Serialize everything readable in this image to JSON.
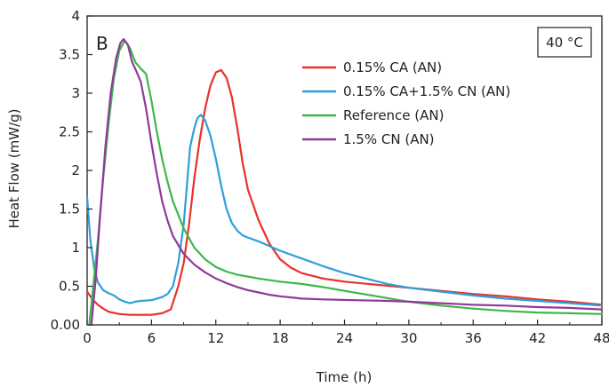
{
  "chart_data": {
    "type": "line",
    "panel_label": "B",
    "annotation": "40 °C",
    "xlabel": "Time (h)",
    "ylabel": "Heat Flow (mW/g)",
    "xlim": [
      0,
      48
    ],
    "ylim": [
      0,
      4
    ],
    "xticks": [
      0,
      6,
      12,
      18,
      24,
      30,
      36,
      42,
      48
    ],
    "yticks": [
      0,
      0.5,
      1,
      1.5,
      2,
      2.5,
      3,
      3.5,
      4
    ],
    "ytick_labels": [
      "0.00",
      "0.5",
      "1",
      "1.5",
      "2",
      "2.5",
      "3",
      "3.5",
      "4"
    ],
    "grid": false,
    "legend_position": "top-right",
    "series": [
      {
        "name": "0.15% CA (AN)",
        "color": "#e8312a",
        "points": [
          [
            0,
            0.43
          ],
          [
            0.5,
            0.33
          ],
          [
            1,
            0.26
          ],
          [
            1.5,
            0.21
          ],
          [
            2,
            0.17
          ],
          [
            3,
            0.14
          ],
          [
            4,
            0.13
          ],
          [
            5,
            0.13
          ],
          [
            6,
            0.13
          ],
          [
            7,
            0.15
          ],
          [
            7.8,
            0.2
          ],
          [
            8.5,
            0.5
          ],
          [
            9,
            0.8
          ],
          [
            9.5,
            1.3
          ],
          [
            10,
            1.9
          ],
          [
            10.5,
            2.4
          ],
          [
            11,
            2.8
          ],
          [
            11.5,
            3.1
          ],
          [
            12,
            3.27
          ],
          [
            12.5,
            3.3
          ],
          [
            13,
            3.2
          ],
          [
            13.5,
            2.95
          ],
          [
            14,
            2.55
          ],
          [
            14.5,
            2.1
          ],
          [
            15,
            1.75
          ],
          [
            16,
            1.35
          ],
          [
            17,
            1.05
          ],
          [
            18,
            0.85
          ],
          [
            19,
            0.74
          ],
          [
            20,
            0.67
          ],
          [
            22,
            0.6
          ],
          [
            24,
            0.56
          ],
          [
            27,
            0.52
          ],
          [
            30,
            0.48
          ],
          [
            33,
            0.44
          ],
          [
            36,
            0.4
          ],
          [
            39,
            0.37
          ],
          [
            42,
            0.33
          ],
          [
            45,
            0.3
          ],
          [
            48,
            0.26
          ]
        ]
      },
      {
        "name": "0.15% CA+1.5% CN (AN)",
        "color": "#2e9fd8",
        "points": [
          [
            0,
            1.65
          ],
          [
            0.3,
            1.1
          ],
          [
            0.7,
            0.7
          ],
          [
            1,
            0.55
          ],
          [
            1.5,
            0.45
          ],
          [
            2,
            0.41
          ],
          [
            2.5,
            0.38
          ],
          [
            3,
            0.33
          ],
          [
            3.5,
            0.3
          ],
          [
            4,
            0.28
          ],
          [
            4.5,
            0.3
          ],
          [
            5,
            0.31
          ],
          [
            6,
            0.32
          ],
          [
            7,
            0.36
          ],
          [
            7.5,
            0.4
          ],
          [
            8,
            0.5
          ],
          [
            8.5,
            0.8
          ],
          [
            9,
            1.3
          ],
          [
            9.3,
            1.8
          ],
          [
            9.6,
            2.3
          ],
          [
            10,
            2.55
          ],
          [
            10.3,
            2.68
          ],
          [
            10.6,
            2.72
          ],
          [
            11,
            2.65
          ],
          [
            11.5,
            2.45
          ],
          [
            12,
            2.15
          ],
          [
            12.5,
            1.8
          ],
          [
            13,
            1.5
          ],
          [
            13.5,
            1.32
          ],
          [
            14,
            1.22
          ],
          [
            14.5,
            1.16
          ],
          [
            15,
            1.13
          ],
          [
            16,
            1.08
          ],
          [
            17,
            1.02
          ],
          [
            18,
            0.96
          ],
          [
            20,
            0.86
          ],
          [
            22,
            0.76
          ],
          [
            24,
            0.67
          ],
          [
            26,
            0.6
          ],
          [
            28,
            0.53
          ],
          [
            30,
            0.48
          ],
          [
            33,
            0.43
          ],
          [
            36,
            0.38
          ],
          [
            39,
            0.34
          ],
          [
            42,
            0.31
          ],
          [
            45,
            0.28
          ],
          [
            48,
            0.25
          ]
        ]
      },
      {
        "name": "Reference (AN)",
        "color": "#3cb84a",
        "points": [
          [
            0.2,
            0
          ],
          [
            0.5,
            0.4
          ],
          [
            1,
            1.1
          ],
          [
            1.5,
            1.9
          ],
          [
            2,
            2.6
          ],
          [
            2.5,
            3.2
          ],
          [
            3,
            3.55
          ],
          [
            3.5,
            3.68
          ],
          [
            4,
            3.58
          ],
          [
            4.5,
            3.4
          ],
          [
            5,
            3.32
          ],
          [
            5.5,
            3.25
          ],
          [
            6,
            2.9
          ],
          [
            6.5,
            2.5
          ],
          [
            7,
            2.15
          ],
          [
            7.5,
            1.85
          ],
          [
            8,
            1.6
          ],
          [
            9,
            1.25
          ],
          [
            10,
            1.0
          ],
          [
            11,
            0.85
          ],
          [
            12,
            0.75
          ],
          [
            13,
            0.69
          ],
          [
            14,
            0.65
          ],
          [
            16,
            0.6
          ],
          [
            18,
            0.56
          ],
          [
            20,
            0.53
          ],
          [
            22,
            0.49
          ],
          [
            24,
            0.44
          ],
          [
            27,
            0.37
          ],
          [
            30,
            0.3
          ],
          [
            33,
            0.25
          ],
          [
            36,
            0.21
          ],
          [
            39,
            0.18
          ],
          [
            42,
            0.16
          ],
          [
            45,
            0.15
          ],
          [
            48,
            0.14
          ]
        ]
      },
      {
        "name": "1.5% CN (AN)",
        "color": "#8e3a9a",
        "points": [
          [
            0.4,
            0
          ],
          [
            0.8,
            0.6
          ],
          [
            1.2,
            1.4
          ],
          [
            1.7,
            2.3
          ],
          [
            2.2,
            3.0
          ],
          [
            2.7,
            3.45
          ],
          [
            3.1,
            3.65
          ],
          [
            3.4,
            3.7
          ],
          [
            3.8,
            3.63
          ],
          [
            4.2,
            3.4
          ],
          [
            4.6,
            3.28
          ],
          [
            5,
            3.15
          ],
          [
            5.5,
            2.8
          ],
          [
            6,
            2.35
          ],
          [
            6.5,
            1.95
          ],
          [
            7,
            1.6
          ],
          [
            7.5,
            1.35
          ],
          [
            8,
            1.15
          ],
          [
            9,
            0.92
          ],
          [
            10,
            0.78
          ],
          [
            11,
            0.68
          ],
          [
            12,
            0.6
          ],
          [
            13,
            0.54
          ],
          [
            14,
            0.49
          ],
          [
            15,
            0.45
          ],
          [
            16,
            0.42
          ],
          [
            17,
            0.39
          ],
          [
            18,
            0.37
          ],
          [
            20,
            0.34
          ],
          [
            22,
            0.33
          ],
          [
            25,
            0.32
          ],
          [
            28,
            0.31
          ],
          [
            30,
            0.3
          ],
          [
            33,
            0.28
          ],
          [
            36,
            0.26
          ],
          [
            39,
            0.25
          ],
          [
            42,
            0.23
          ],
          [
            45,
            0.22
          ],
          [
            48,
            0.2
          ]
        ]
      }
    ]
  }
}
